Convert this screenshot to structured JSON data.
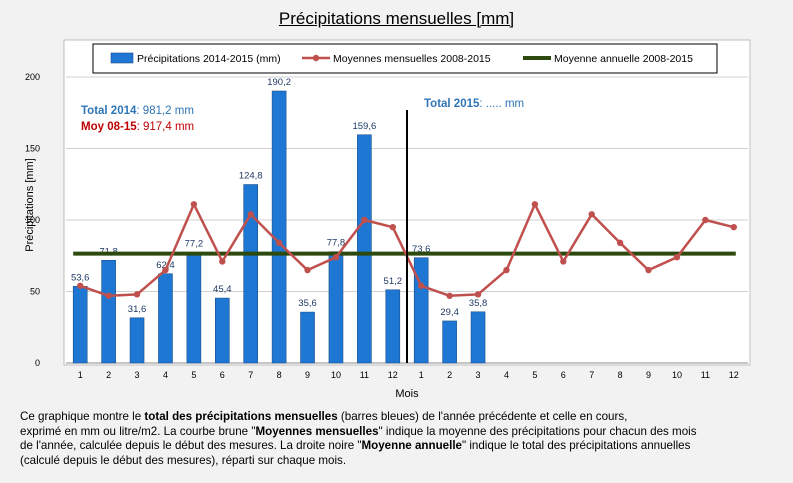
{
  "title": "Précipitations mensuelles [mm]",
  "chart_data": {
    "type": "bar",
    "title": "Précipitations mensuelles [mm]",
    "xlabel": "Mois",
    "ylabel": "Précipitations [mm]",
    "ylim": [
      0,
      200
    ],
    "yticks": [
      "0",
      "50",
      "100",
      "150",
      "200"
    ],
    "categories": [
      "1",
      "2",
      "3",
      "4",
      "5",
      "6",
      "7",
      "8",
      "9",
      "10",
      "11",
      "12",
      "1",
      "2",
      "3",
      "4",
      "5",
      "6",
      "7",
      "8",
      "9",
      "10",
      "11",
      "12"
    ],
    "series": [
      {
        "name": "Précipitations 2014-2015 (mm)",
        "type": "bar",
        "color": "#1f77d4",
        "values": [
          53.6,
          71.8,
          31.6,
          62.4,
          77.2,
          45.4,
          124.8,
          190.2,
          35.6,
          77.8,
          159.6,
          51.2,
          73.6,
          29.4,
          35.8,
          null,
          null,
          null,
          null,
          null,
          null,
          null,
          null,
          null
        ],
        "labels": [
          "53,6",
          "71,8",
          "31,6",
          "62,4",
          "77,2",
          "45,4",
          "124,8",
          "190,2",
          "35,6",
          "77,8",
          "159,6",
          "51,2",
          "73,6",
          "29,4",
          "35,8",
          "",
          "",
          "",
          "",
          "",
          "",
          "",
          "",
          ""
        ]
      },
      {
        "name": "Moyennes mensuelles 2008-2015",
        "type": "line",
        "color": "#c0504d",
        "values": [
          54,
          47,
          48,
          65,
          111,
          71,
          104,
          84,
          65,
          74,
          100,
          95,
          54,
          47,
          48,
          65,
          111,
          71,
          104,
          84,
          65,
          74,
          100,
          95
        ]
      },
      {
        "name": "Moyenne annuelle 2008-2015",
        "type": "line",
        "color": "#2d4a0e",
        "values": [
          76.5,
          76.5,
          76.5,
          76.5,
          76.5,
          76.5,
          76.5,
          76.5,
          76.5,
          76.5,
          76.5,
          76.5,
          76.5,
          76.5,
          76.5,
          76.5,
          76.5,
          76.5,
          76.5,
          76.5,
          76.5,
          76.5,
          76.5,
          76.5
        ]
      }
    ],
    "grid": true,
    "legend": "top",
    "year_separator_after": 12,
    "annotations": [
      {
        "label": "Total 2014",
        "value": ": 981,2 mm",
        "color": "#2e75b6"
      },
      {
        "label": "Moy 08-15",
        "value": ": 917,4 mm",
        "color": "#c00000"
      },
      {
        "label": "Total 2015",
        "value": ": ..... mm",
        "color": "#2e75b6"
      }
    ]
  },
  "caption": [
    [
      {
        "t": "Ce graphique  montre le ",
        "b": false
      },
      {
        "t": "total des précipitations mensuelles",
        "b": true
      },
      {
        "t": " (barres bleues) de l'année précédente et celle en cours,",
        "b": false
      }
    ],
    [
      {
        "t": "exprimé en  mm ou litre/m2. La courbe brune \"",
        "b": false
      },
      {
        "t": "Moyennes mensuelles",
        "b": true
      },
      {
        "t": "\" indique la moyenne des précipitations pour chacun des mois",
        "b": false
      }
    ],
    [
      {
        "t": " de l'année, calculée depuis le début des mesures. La droite noire \"",
        "b": false
      },
      {
        "t": "Moyenne annuelle",
        "b": true
      },
      {
        "t": "\" indique le total des précipitations annuelles",
        "b": false
      }
    ],
    [
      {
        "t": " (calculé depuis le début  des mesures), réparti sur chaque mois.",
        "b": false
      }
    ]
  ]
}
